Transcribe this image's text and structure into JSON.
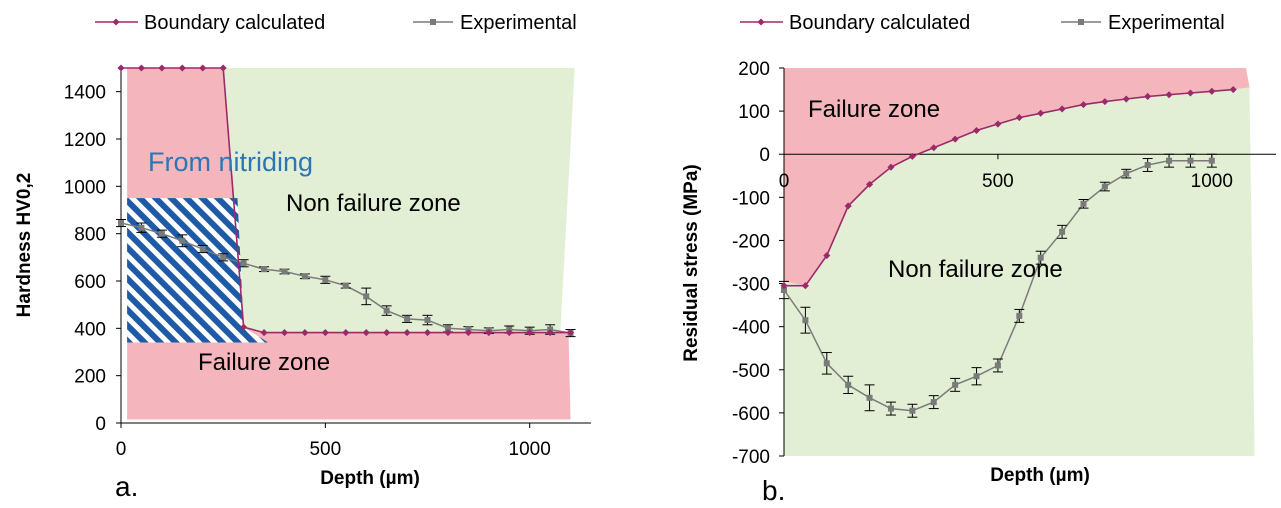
{
  "colors": {
    "boundary": "#9b2a6a",
    "experimental": "#7a7a7a",
    "failure_fill": "#f4b6bc",
    "non_failure_fill": "#e2efd4",
    "hatch": "#1f5aa6",
    "annotation": "#2e75b6"
  },
  "chart_data": [
    {
      "type": "line",
      "panel_label": "a.",
      "xlabel": "Depth (µm)",
      "ylabel": "Hardness HV0,2",
      "xlim": [
        0,
        1150
      ],
      "ylim": [
        0,
        1500
      ],
      "xticks": [
        "0",
        "500",
        "1000"
      ],
      "yticks": [
        "0",
        "200",
        "400",
        "600",
        "800",
        "1000",
        "1200",
        "1400"
      ],
      "grid": false,
      "legend": "top",
      "series": [
        {
          "name": "Boundary calculated",
          "marker": "diamond",
          "x": [
            0,
            50,
            100,
            150,
            200,
            250,
            300,
            350,
            400,
            450,
            500,
            550,
            600,
            650,
            700,
            750,
            800,
            850,
            900,
            950,
            1000,
            1050,
            1100
          ],
          "y": [
            1500,
            1500,
            1500,
            1500,
            1500,
            1500,
            405,
            382,
            382,
            382,
            382,
            382,
            382,
            382,
            382,
            382,
            382,
            382,
            382,
            382,
            382,
            382,
            382
          ]
        },
        {
          "name": "Experimental",
          "marker": "square",
          "errorbars": true,
          "x": [
            0,
            50,
            100,
            150,
            200,
            250,
            300,
            350,
            400,
            450,
            500,
            550,
            600,
            650,
            700,
            750,
            800,
            850,
            900,
            950,
            1000,
            1050,
            1100
          ],
          "y": [
            845,
            825,
            800,
            770,
            735,
            700,
            675,
            650,
            640,
            620,
            605,
            580,
            535,
            475,
            440,
            435,
            400,
            395,
            390,
            395,
            390,
            395,
            380
          ],
          "err": [
            15,
            20,
            15,
            25,
            15,
            15,
            15,
            10,
            10,
            10,
            15,
            10,
            35,
            20,
            15,
            20,
            15,
            12,
            12,
            15,
            15,
            20,
            15
          ]
        }
      ],
      "annotations": [
        "From nitriding",
        "Non failure zone",
        "Failure zone"
      ]
    },
    {
      "type": "line",
      "panel_label": "b.",
      "xlabel": "Depth (µm)",
      "ylabel": "Residual stress (MPa)",
      "xlim": [
        0,
        1150
      ],
      "ylim": [
        -700,
        200
      ],
      "xticks": [
        "0",
        "500",
        "1000"
      ],
      "yticks": [
        "-700",
        "-600",
        "-500",
        "-400",
        "-300",
        "-200",
        "-100",
        "0",
        "100",
        "200"
      ],
      "grid": false,
      "legend": "top",
      "series": [
        {
          "name": "Boundary calculated",
          "marker": "diamond",
          "x": [
            0,
            50,
            100,
            150,
            200,
            250,
            300,
            350,
            400,
            450,
            500,
            550,
            600,
            650,
            700,
            750,
            800,
            850,
            900,
            950,
            1000,
            1050
          ],
          "y": [
            -305,
            -305,
            -235,
            -120,
            -70,
            -30,
            -5,
            15,
            35,
            55,
            70,
            85,
            95,
            105,
            115,
            122,
            128,
            134,
            138,
            142,
            146,
            150
          ]
        },
        {
          "name": "Experimental",
          "marker": "square",
          "errorbars": true,
          "x": [
            0,
            50,
            100,
            150,
            200,
            250,
            300,
            350,
            400,
            450,
            500,
            550,
            600,
            650,
            700,
            750,
            800,
            850,
            900,
            950,
            1000
          ],
          "y": [
            -315,
            -385,
            -485,
            -535,
            -565,
            -590,
            -595,
            -575,
            -535,
            -515,
            -490,
            -375,
            -240,
            -180,
            -115,
            -75,
            -45,
            -25,
            -15,
            -15,
            -15
          ],
          "err": [
            20,
            30,
            25,
            20,
            30,
            15,
            15,
            15,
            15,
            20,
            15,
            15,
            15,
            15,
            10,
            10,
            10,
            15,
            15,
            15,
            15
          ]
        }
      ],
      "annotations": [
        "Failure zone",
        "Non failure zone"
      ]
    }
  ]
}
